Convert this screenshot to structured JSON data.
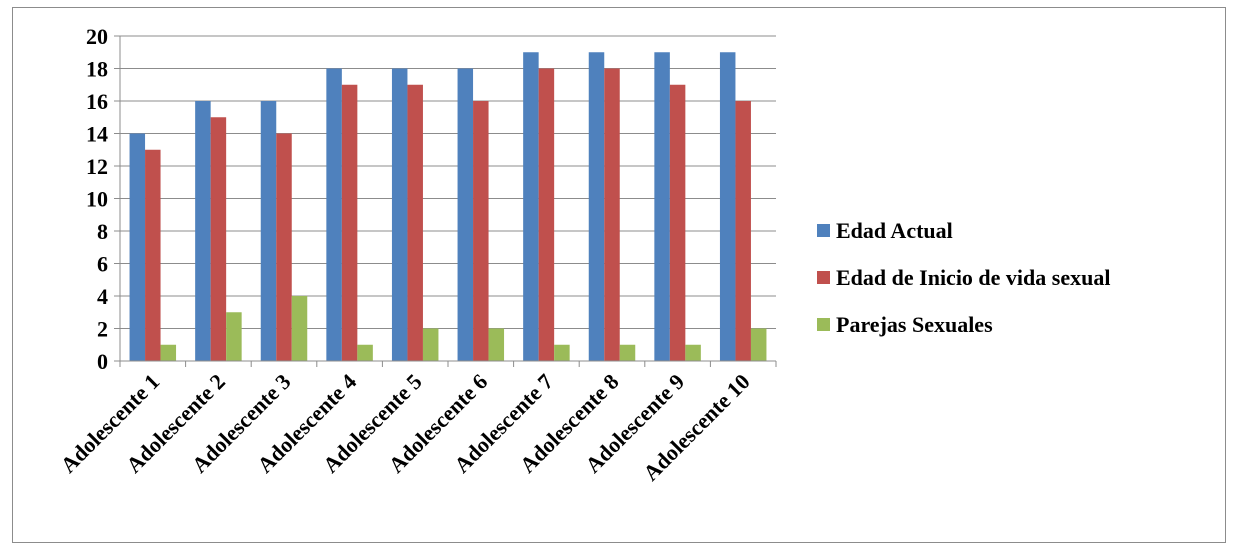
{
  "chart_data": {
    "type": "bar",
    "title": "",
    "xlabel": "",
    "ylabel": "",
    "ylim": [
      0,
      20
    ],
    "yticks": [
      0,
      2,
      4,
      6,
      8,
      10,
      12,
      14,
      16,
      18,
      20
    ],
    "grid": true,
    "legend_position": "right",
    "categories": [
      "Adolescente 1",
      "Adolescente 2",
      "Adolescente 3",
      "Adolescente 4",
      "Adolescente 5",
      "Adolescente 6",
      "Adolescente 7",
      "Adolescente 8",
      "Adolescente 9",
      "Adolescente 10"
    ],
    "series": [
      {
        "name": "Edad Actual",
        "color": "#4F81BD",
        "values": [
          14,
          16,
          16,
          18,
          18,
          18,
          19,
          19,
          19,
          19
        ]
      },
      {
        "name": "Edad de Inicio de vida sexual",
        "color": "#C0504D",
        "values": [
          13,
          15,
          14,
          17,
          17,
          16,
          18,
          18,
          17,
          16
        ]
      },
      {
        "name": "Parejas Sexuales",
        "color": "#9BBB59",
        "values": [
          1,
          3,
          4,
          1,
          2,
          2,
          1,
          1,
          1,
          2
        ]
      }
    ]
  }
}
